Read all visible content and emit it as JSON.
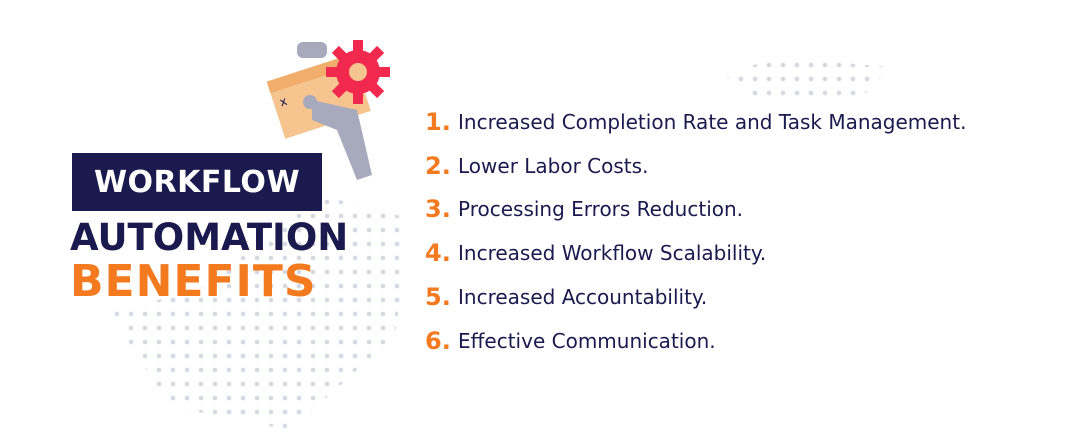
{
  "colors": {
    "navy": "#1b1a4f",
    "orange": "#f47a20",
    "gear": "#f2294f",
    "window": "#f6c48f",
    "arm": "#a7a9bd"
  },
  "illustration": {
    "icon": "hand-holding-gear-window-icon"
  },
  "title": {
    "line1": "WORKFLOW",
    "line2": "AUTOMATION",
    "line3": "BENEFITS"
  },
  "benefits": [
    {
      "num": "1.",
      "text": "Increased Completion Rate and Task Management."
    },
    {
      "num": "2.",
      "text": "Lower Labor Costs."
    },
    {
      "num": "3.",
      "text": "Processing Errors Reduction."
    },
    {
      "num": "4.",
      "text": "Increased Workflow Scalability."
    },
    {
      "num": "5.",
      "text": "Increased Accountability."
    },
    {
      "num": "6.",
      "text": "Effective Communication."
    }
  ]
}
